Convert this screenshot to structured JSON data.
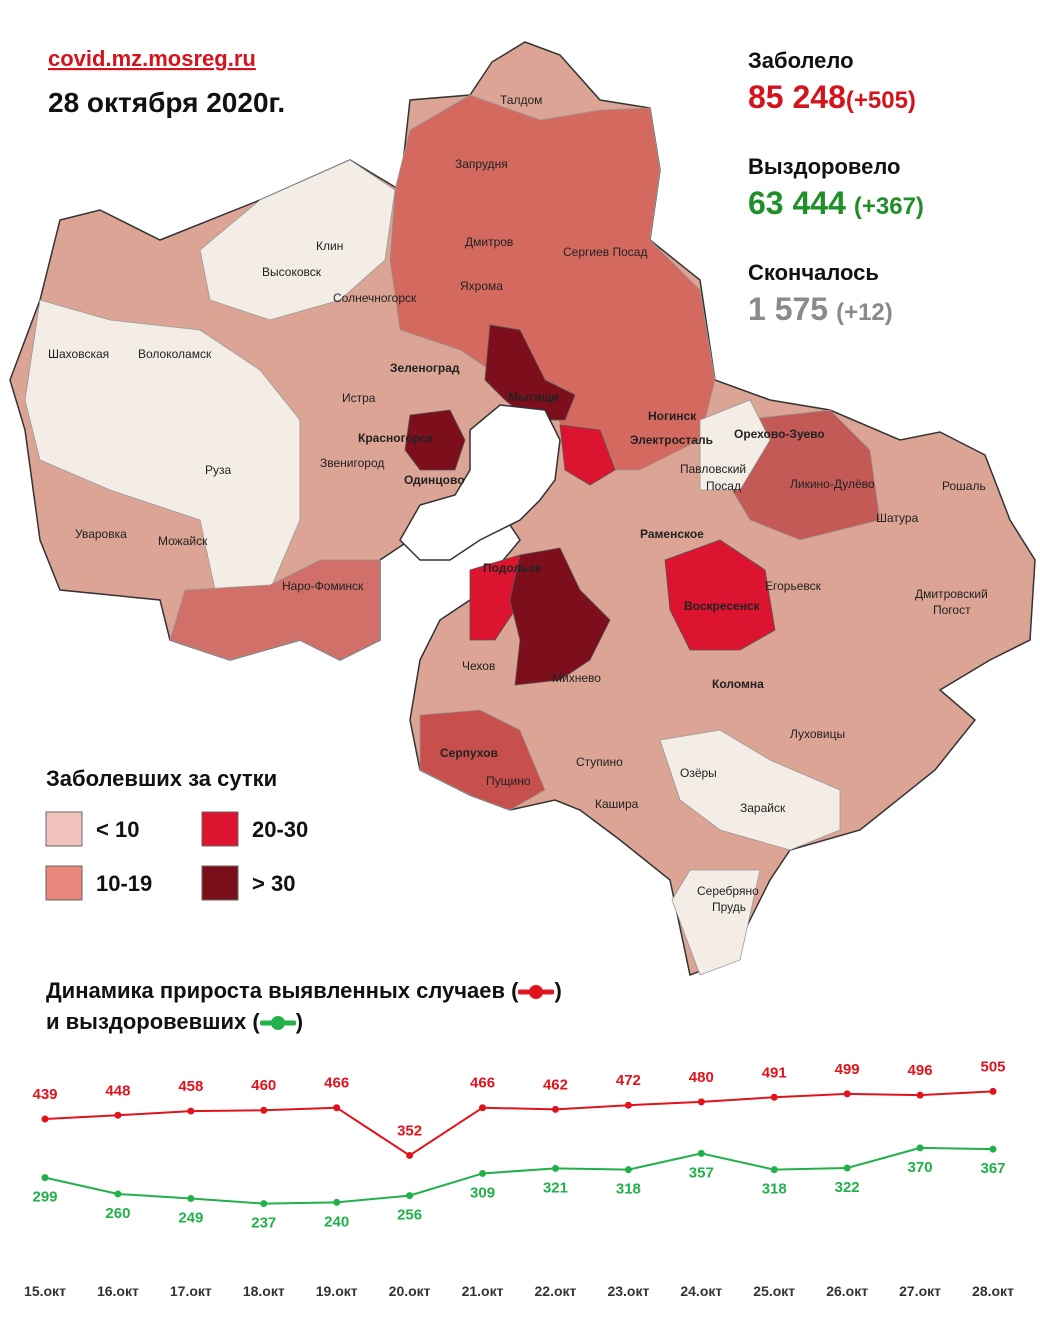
{
  "header": {
    "site": "covid.mz.mosreg.ru",
    "date": "28 октября 2020г."
  },
  "stats": [
    {
      "label": "Заболело",
      "value": "85 248",
      "delta": "(+505)",
      "color": "#d4141c"
    },
    {
      "label": "Выздоровело",
      "value": "63 444",
      "delta": "(+367)",
      "color": "#1f8f2a"
    },
    {
      "label": "Скончалось",
      "value": "1 575",
      "delta": "(+12)",
      "color": "#8a8a8a"
    }
  ],
  "map_legend": {
    "title": "Заболевших за сутки",
    "items": [
      {
        "label": "< 10",
        "color": "#f0c3bd"
      },
      {
        "label": "10-19",
        "color": "#e8867c"
      },
      {
        "label": "20-30",
        "color": "#dc1430"
      },
      {
        "label": "> 30",
        "color": "#7a0f1c"
      }
    ]
  },
  "map": {
    "labels": [
      "Талдом",
      "Запрудня",
      "Клин",
      "Высоковск",
      "Дмитров",
      "Сергиев Посад",
      "Яхрома",
      "Солнечногорск",
      "Шаховская",
      "Волоколамск",
      "Зеленоград",
      "Истра",
      "Мытищи",
      "Ногинск",
      "Электросталь",
      "Орехово-Зуево",
      "Красногорск",
      "Звенигород",
      "Руза",
      "Павловский",
      "Посад",
      "Одинцово",
      "Ликино-Дулёво",
      "Рошаль",
      "Уваровка",
      "Можайск",
      "Раменское",
      "Шатура",
      "Наро-Фоминск",
      "Подольск",
      "Воскресенск",
      "Егорьевск",
      "Дмитровский",
      "Погост",
      "Чехов",
      "Михнево",
      "Коломна",
      "Серпухов",
      "Пущино",
      "Ступино",
      "Луховицы",
      "Озёры",
      "Кашира",
      "Зарайск",
      "Серебряно",
      "Прудь"
    ]
  },
  "chart_data": {
    "type": "line",
    "legend_brackets": [
      "(",
      ")"
    ],
    "categories": [
      "15.окт",
      "16.окт",
      "17.окт",
      "18.окт",
      "19.окт",
      "20.окт",
      "21.окт",
      "22.окт",
      "23.окт",
      "24.окт",
      "25.окт",
      "26.окт",
      "27.окт",
      "28.окт"
    ],
    "series": [
      {
        "name": "Динамика прироста выявленных случаев",
        "color": "#e0141c",
        "label_side": "above",
        "values": [
          439,
          448,
          458,
          460,
          466,
          352,
          466,
          462,
          472,
          480,
          491,
          499,
          496,
          505
        ]
      },
      {
        "name": "и выздоровевших",
        "color": "#22b04a",
        "label_side": "below",
        "values": [
          299,
          260,
          249,
          237,
          240,
          256,
          309,
          321,
          318,
          357,
          318,
          322,
          370,
          367
        ]
      }
    ],
    "ylim": [
      150,
      580
    ]
  }
}
